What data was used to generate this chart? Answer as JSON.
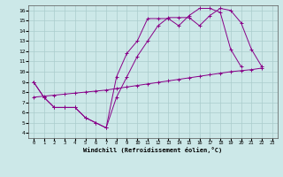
{
  "line1_x": [
    0,
    1,
    2,
    3,
    4,
    5,
    6,
    7,
    8,
    9,
    10,
    11,
    12,
    13,
    14,
    15,
    16,
    17,
    18,
    19,
    20,
    21
  ],
  "line1_y": [
    9.0,
    7.5,
    6.5,
    6.5,
    6.5,
    5.5,
    5.0,
    4.5,
    9.5,
    11.8,
    13.0,
    15.2,
    15.2,
    15.2,
    14.5,
    15.5,
    16.2,
    16.2,
    15.8,
    12.2,
    10.5,
    null
  ],
  "line2_x": [
    0,
    1,
    2,
    3,
    4,
    5,
    6,
    7,
    8,
    9,
    10,
    11,
    12,
    13,
    14,
    15,
    16,
    17,
    18,
    19,
    20,
    21,
    22
  ],
  "line2_y": [
    9.0,
    7.5,
    6.5,
    6.5,
    6.5,
    5.5,
    5.0,
    4.5,
    7.5,
    9.5,
    11.5,
    13.0,
    14.5,
    15.3,
    15.3,
    15.3,
    14.5,
    15.5,
    16.2,
    16.0,
    14.8,
    12.2,
    10.5
  ],
  "line3_x": [
    0,
    1,
    2,
    3,
    4,
    5,
    6,
    7,
    8,
    9,
    10,
    11,
    12,
    13,
    14,
    15,
    16,
    17,
    18,
    19,
    20,
    21,
    22
  ],
  "line3_y": [
    7.5,
    7.6,
    7.7,
    7.8,
    7.9,
    8.0,
    8.1,
    8.2,
    8.35,
    8.5,
    8.65,
    8.8,
    8.95,
    9.1,
    9.25,
    9.4,
    9.55,
    9.7,
    9.85,
    10.0,
    10.1,
    10.2,
    10.35
  ],
  "line_color": "#880088",
  "bg_color": "#cce8e8",
  "xlabel": "Windchill (Refroidissement éolien,°C)",
  "xlim": [
    -0.5,
    23.5
  ],
  "ylim": [
    3.5,
    16.5
  ],
  "xticks": [
    0,
    1,
    2,
    3,
    4,
    5,
    6,
    7,
    8,
    9,
    10,
    11,
    12,
    13,
    14,
    15,
    16,
    17,
    18,
    19,
    20,
    21,
    22,
    23
  ],
  "yticks": [
    4,
    5,
    6,
    7,
    8,
    9,
    10,
    11,
    12,
    13,
    14,
    15,
    16
  ],
  "grid_color": "#aacccc",
  "marker": "+"
}
